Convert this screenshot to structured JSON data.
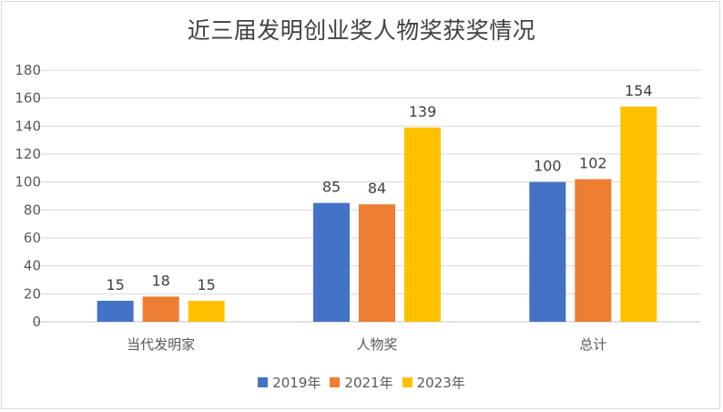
{
  "chart_data": {
    "type": "bar",
    "title": "近三届发明创业奖人物奖获奖情况",
    "categories": [
      "当代发明家",
      "人物奖",
      "总计"
    ],
    "series": [
      {
        "name": "2019年",
        "color": "#4472c4",
        "values": [
          15,
          85,
          100
        ]
      },
      {
        "name": "2021年",
        "color": "#ed7d31",
        "values": [
          18,
          84,
          102
        ]
      },
      {
        "name": "2023年",
        "color": "#ffc000",
        "values": [
          15,
          139,
          154
        ]
      }
    ],
    "ylim": [
      0,
      180
    ],
    "yticks": [
      0,
      20,
      40,
      60,
      80,
      100,
      120,
      140,
      160,
      180
    ],
    "grid": true,
    "data_labels": true,
    "legend": "bottom"
  }
}
